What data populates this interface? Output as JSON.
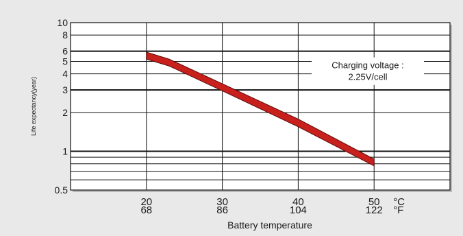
{
  "chart_data": {
    "type": "line",
    "title": "",
    "xlabel": "Battery temperature",
    "ylabel": "Life expectancy(year)",
    "y_scale": "log",
    "ylim": [
      0.5,
      10
    ],
    "xlim": [
      10,
      60
    ],
    "y_ticks": [
      {
        "value": 10,
        "label": "10"
      },
      {
        "value": 8,
        "label": "8"
      },
      {
        "value": 6,
        "label": "6"
      },
      {
        "value": 5,
        "label": "5"
      },
      {
        "value": 4,
        "label": "4"
      },
      {
        "value": 3,
        "label": "3"
      },
      {
        "value": 2,
        "label": "2"
      },
      {
        "value": 1,
        "label": "1"
      },
      {
        "value": 0.5,
        "label": "0.5"
      }
    ],
    "y_minor_grid": [
      0.9,
      0.8,
      0.7,
      0.6
    ],
    "y_major_grid": [
      6,
      3,
      1
    ],
    "x_ticks": [
      {
        "value": 20,
        "celsius": "20",
        "fahrenheit": "68"
      },
      {
        "value": 30,
        "celsius": "30",
        "fahrenheit": "86"
      },
      {
        "value": 40,
        "celsius": "40",
        "fahrenheit": "104"
      },
      {
        "value": 50,
        "celsius": "50",
        "fahrenheit": "122"
      }
    ],
    "x_unit_celsius": "°C",
    "x_unit_fahrenheit": "°F",
    "grid": true,
    "series": [
      {
        "color": "#c8201c",
        "upper": [
          [
            20,
            5.9
          ],
          [
            23,
            5.2
          ],
          [
            30,
            3.35
          ],
          [
            40,
            1.78
          ],
          [
            50,
            0.87
          ]
        ],
        "lower": [
          [
            20,
            5.2
          ],
          [
            23,
            4.6
          ],
          [
            30,
            2.95
          ],
          [
            40,
            1.55
          ],
          [
            50,
            0.77
          ]
        ]
      }
    ],
    "annotation": {
      "line1": "Charging voltage :",
      "line2": "2.25V/cell"
    }
  }
}
